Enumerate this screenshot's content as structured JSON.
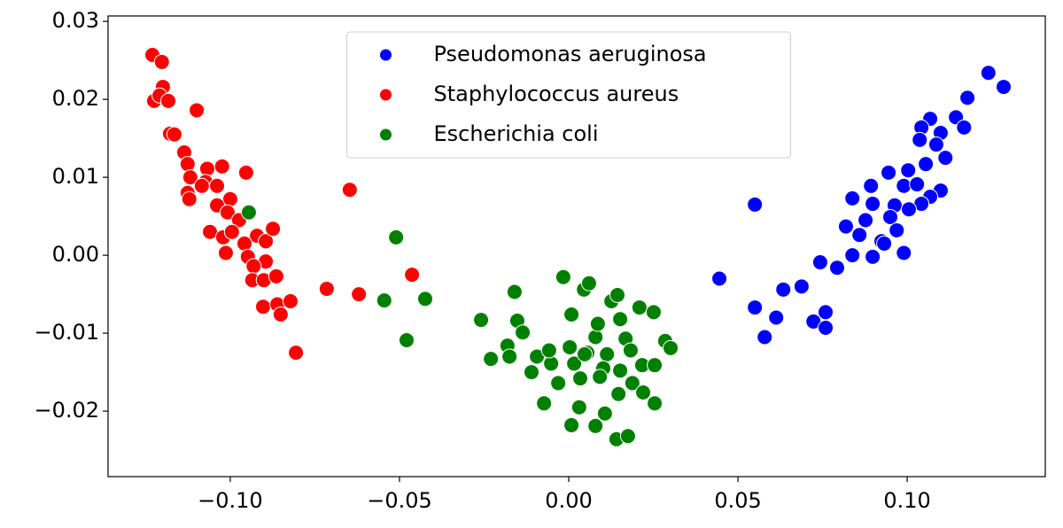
{
  "chart_data": {
    "type": "scatter",
    "xlim": [
      -0.1361,
      0.1408
    ],
    "ylim": [
      -0.0284,
      0.0307
    ],
    "xticks": [
      {
        "value": -0.1,
        "label": "−0.10"
      },
      {
        "value": -0.05,
        "label": "−0.05"
      },
      {
        "value": 0,
        "label": "0.00"
      },
      {
        "value": 0.05,
        "label": "0.05"
      },
      {
        "value": 0.1,
        "label": "0.10"
      }
    ],
    "yticks": [
      {
        "value": -0.02,
        "label": "−0.02"
      },
      {
        "value": -0.01,
        "label": "−0.01"
      },
      {
        "value": 0,
        "label": "0.00"
      },
      0.01,
      0.02,
      0.03
    ],
    "legend": "upper center",
    "grid": false,
    "series": [
      {
        "name": "Pseudomonas aeruginosa",
        "color": "#0000ff",
        "x": [
          0.124,
          0.1285,
          0.1178,
          0.1144,
          0.1168,
          0.1068,
          0.1042,
          0.1099,
          0.1037,
          0.1086,
          0.1113,
          0.1055,
          0.1003,
          0.0945,
          0.099,
          0.1029,
          0.1099,
          0.0893,
          0.1068,
          0.1042,
          0.0838,
          0.0898,
          0.0963,
          0.1005,
          0.095,
          0.0877,
          0.0819,
          0.0969,
          0.0859,
          0.0924,
          0.099,
          0.0898,
          0.0838,
          0.0793,
          0.0743,
          0.055,
          0.0445,
          0.055,
          0.0634,
          0.0688,
          0.0613,
          0.0579,
          0.0723,
          0.0759,
          0.0759,
          0.0932
        ],
        "values": [
          0.0234,
          0.0216,
          0.0202,
          0.0177,
          0.0164,
          0.0175,
          0.0164,
          0.0157,
          0.0148,
          0.0142,
          0.0125,
          0.0117,
          0.0109,
          0.0106,
          0.0089,
          0.0091,
          0.0083,
          0.0089,
          0.0075,
          0.0066,
          0.0073,
          0.0066,
          0.0064,
          0.0059,
          0.0049,
          0.0045,
          0.0037,
          0.0032,
          0.0026,
          0.0018,
          0.0003,
          -0.0002,
          0.0,
          -0.0016,
          -0.0009,
          0.0065,
          -0.003,
          -0.0067,
          -0.0044,
          -0.004,
          -0.008,
          -0.0105,
          -0.0085,
          -0.0073,
          -0.0093,
          0.0015
        ]
      },
      {
        "name": "Staphylococcus aureus",
        "color": "#ff0000",
        "x": [
          -0.123,
          -0.1202,
          -0.1199,
          -0.1225,
          -0.1209,
          -0.1183,
          -0.1099,
          -0.1178,
          -0.1165,
          -0.1136,
          -0.1126,
          -0.1068,
          -0.1024,
          -0.0953,
          -0.1118,
          -0.1073,
          -0.1039,
          -0.1126,
          -0.1084,
          -0.1,
          -0.1121,
          -0.1039,
          -0.1008,
          -0.0974,
          -0.106,
          -0.1021,
          -0.0995,
          -0.0921,
          -0.0958,
          -0.0895,
          -0.0874,
          -0.1013,
          -0.0948,
          -0.0895,
          -0.0931,
          -0.0935,
          -0.0901,
          -0.0864,
          -0.0903,
          -0.0861,
          -0.0851,
          -0.0822,
          -0.0806,
          -0.0715,
          -0.0647,
          -0.062,
          -0.0463
        ],
        "values": [
          0.0257,
          0.0248,
          0.0216,
          0.0198,
          0.0205,
          0.0198,
          0.0186,
          0.0156,
          0.0155,
          0.0132,
          0.0117,
          0.0111,
          0.0114,
          0.0106,
          0.01,
          0.0094,
          0.0089,
          0.008,
          0.0089,
          0.0072,
          0.0072,
          0.0064,
          0.0055,
          0.0045,
          0.003,
          0.0023,
          0.003,
          0.0025,
          0.0015,
          0.0018,
          0.0034,
          0.0003,
          -0.0002,
          -0.0008,
          -0.0014,
          -0.0032,
          -0.0032,
          -0.0027,
          -0.0066,
          -0.0063,
          -0.0076,
          -0.0059,
          -0.0125,
          -0.0043,
          0.0084,
          -0.005,
          -0.0025
        ]
      },
      {
        "name": "Escherichia coli",
        "color": "#008000",
        "x": [
          -0.0945,
          -0.051,
          -0.0545,
          -0.0479,
          -0.0424,
          -0.0259,
          -0.023,
          -0.016,
          -0.0152,
          -0.0181,
          -0.0175,
          -0.0136,
          -0.011,
          -0.0094,
          -0.0073,
          -0.0052,
          -0.0031,
          -0.0016,
          0.0008,
          0.0003,
          0.0016,
          0.0034,
          0.0031,
          0.0008,
          0.0045,
          0.006,
          0.0055,
          0.0079,
          0.0086,
          0.0113,
          0.0102,
          0.0092,
          0.0079,
          0.0107,
          0.0126,
          0.0144,
          0.0152,
          0.0168,
          0.0152,
          0.0147,
          0.0141,
          0.0175,
          0.0183,
          0.0188,
          0.0209,
          0.0217,
          0.022,
          0.0251,
          0.0254,
          0.0254,
          0.0285,
          0.0301,
          -0.0058,
          0.0047
        ],
        "values": [
          0.0055,
          0.0023,
          -0.0058,
          -0.0109,
          -0.0056,
          -0.0083,
          -0.0133,
          -0.0047,
          -0.0084,
          -0.0116,
          -0.013,
          -0.0099,
          -0.015,
          -0.013,
          -0.019,
          -0.0139,
          -0.0164,
          -0.0028,
          -0.0076,
          -0.0118,
          -0.0139,
          -0.0158,
          -0.0195,
          -0.0218,
          -0.0044,
          -0.0036,
          -0.0125,
          -0.0105,
          -0.0088,
          -0.0127,
          -0.0145,
          -0.0156,
          -0.0219,
          -0.0203,
          -0.0059,
          -0.0051,
          -0.0082,
          -0.0107,
          -0.0148,
          -0.0178,
          -0.0236,
          -0.0232,
          -0.0122,
          -0.0164,
          -0.0067,
          -0.0141,
          -0.0176,
          -0.0073,
          -0.0141,
          -0.019,
          -0.011,
          -0.0119,
          -0.0122,
          -0.0127
        ]
      }
    ]
  }
}
